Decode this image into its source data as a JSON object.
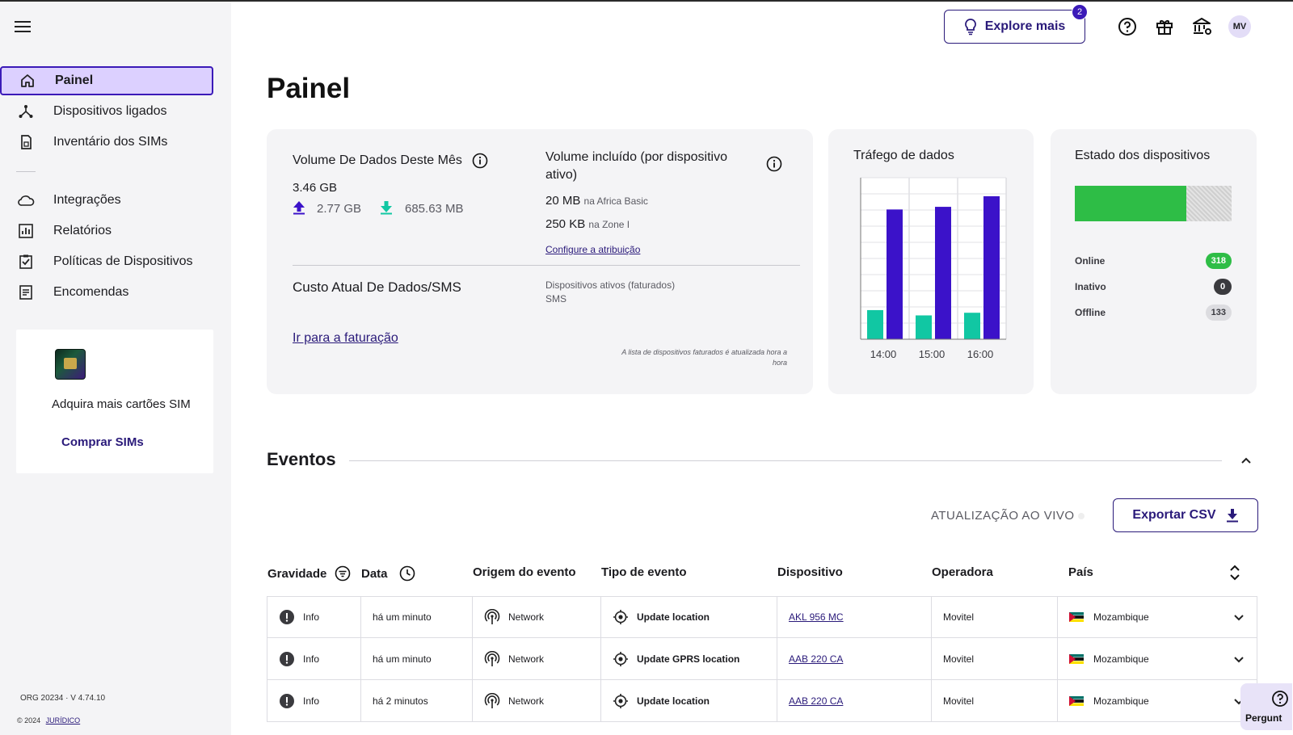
{
  "header": {
    "explore_label": "Explore mais",
    "explore_badge": "2",
    "avatar_initials": "MV"
  },
  "sidebar": {
    "items": [
      {
        "label": "Painel",
        "icon": "home-icon",
        "active": true
      },
      {
        "label": "Dispositivos ligados",
        "icon": "network-icon"
      },
      {
        "label": "Inventário dos SIMs",
        "icon": "sim-card-icon"
      },
      {
        "label": "Integrações",
        "icon": "cloud-icon"
      },
      {
        "label": "Relatórios",
        "icon": "bar-chart-icon"
      },
      {
        "label": "Políticas de Dispositivos",
        "icon": "checklist-icon"
      },
      {
        "label": "Encomendas",
        "icon": "document-icon"
      }
    ],
    "promo": {
      "text": "Adquira mais cartões SIM",
      "button": "Comprar SIMs"
    },
    "org": "ORG 20234",
    "version": "V 4.74.10",
    "copyright": "© 2024",
    "legal_link": "JURÍDICO"
  },
  "page": {
    "title": "Painel"
  },
  "data_volume": {
    "title": "Volume De Dados Deste Mês",
    "total": "3.46 GB",
    "upload": "2.77 GB",
    "download": "685.63 MB"
  },
  "included_volume": {
    "title": "Volume incluído (por dispositivo ativo)",
    "lines": [
      {
        "value": "20 MB",
        "label": "na Africa Basic"
      },
      {
        "value": "250 KB",
        "label": "na Zone I"
      }
    ],
    "configure_link": "Configure a atribuição"
  },
  "cost": {
    "title": "Custo Atual De Dados/SMS",
    "billing_link": "Ir para a faturação",
    "active_devices_label": "Dispositivos ativos (faturados)",
    "sms_label": "SMS",
    "note": "A lista de dispositivos faturados é atualizada hora a hora"
  },
  "traffic": {
    "title": "Tráfego de dados"
  },
  "chart_data": {
    "type": "bar",
    "categories": [
      "14:00",
      "15:00",
      "16:00"
    ],
    "series": [
      {
        "values": [
          0.22,
          0.18,
          0.2
        ],
        "color": "#11c7a3"
      },
      {
        "values": [
          0.98,
          1.0,
          1.08
        ],
        "color": "#3b12c9"
      }
    ],
    "ylim": [
      0,
      1.22
    ],
    "grid": true
  },
  "device_state": {
    "title": "Estado dos dispositivos",
    "online_fraction": 0.71,
    "rows": [
      {
        "label": "Online",
        "count": "318",
        "bg": "#2ebd46",
        "fg": "#ffffff"
      },
      {
        "label": "Inativo",
        "count": "0",
        "bg": "#3a3a3e",
        "fg": "#ffffff"
      },
      {
        "label": "Offline",
        "count": "133",
        "bg": "#dcdce0",
        "fg": "#3a3a40"
      }
    ]
  },
  "events": {
    "title": "Eventos",
    "live_label": "ATUALIZAÇÃO AO VIVO",
    "export_label": "Exportar CSV",
    "columns": [
      "Gravidade",
      "Data",
      "Origem do evento",
      "Tipo de evento",
      "Dispositivo",
      "Operadora",
      "País"
    ],
    "rows": [
      {
        "severity": "Info",
        "date": "há um minuto",
        "origin": "Network",
        "type": "Update location",
        "device": "AKL 956 MC",
        "operator": "Movitel",
        "country": "Mozambique"
      },
      {
        "severity": "Info",
        "date": "há um minuto",
        "origin": "Network",
        "type": "Update GPRS location",
        "device": "AAB 220 CA",
        "operator": "Movitel",
        "country": "Mozambique"
      },
      {
        "severity": "Info",
        "date": "há 2 minutos",
        "origin": "Network",
        "type": "Update location",
        "device": "AAB 220 CA",
        "operator": "Movitel",
        "country": "Mozambique"
      }
    ]
  },
  "help": {
    "label": "Pergunt"
  }
}
